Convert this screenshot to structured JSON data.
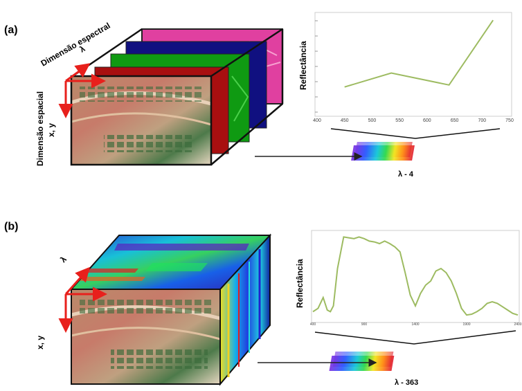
{
  "panel_a": {
    "label": "(a)",
    "spectral_axis_label": "Dimensão espectral",
    "lambda_symbol": "λ",
    "spatial_axis_label": "Dimensão espacial",
    "spatial_xy_label": "x, y",
    "chart_ylabel": "Reflectância",
    "band_caption": "λ - 4",
    "band_colors": [
      "#e040a0",
      "#101080",
      "#109a10",
      "#b01010"
    ]
  },
  "panel_b": {
    "label": "(b)",
    "lambda_symbol": "λ",
    "spatial_xy_label": "x, y",
    "chart_ylabel": "Reflectância",
    "band_caption": "λ - 363"
  },
  "chart_data": [
    {
      "type": "line",
      "ylabel": "Reflectância",
      "xlim": [
        400,
        750
      ],
      "xticks": [
        "400",
        "450",
        "500",
        "550",
        "600",
        "650",
        "700",
        "750"
      ],
      "x": [
        450,
        535,
        640,
        720
      ],
      "y": [
        0.28,
        0.42,
        0.3,
        0.95
      ],
      "ylim": [
        0,
        1
      ],
      "color": "#9dbb61"
    },
    {
      "type": "line",
      "ylabel": "Reflectância",
      "xlim": [
        400,
        2400
      ],
      "xticks": [
        "400",
        "900",
        "1400",
        "1900",
        "2400"
      ],
      "x": [
        400,
        450,
        500,
        540,
        570,
        600,
        640,
        700,
        750,
        800,
        850,
        900,
        950,
        1000,
        1050,
        1100,
        1150,
        1200,
        1250,
        1300,
        1350,
        1400,
        1450,
        1500,
        1550,
        1600,
        1650,
        1700,
        1750,
        1800,
        1850,
        1900,
        1950,
        2000,
        2050,
        2100,
        2150,
        2200,
        2250,
        2300,
        2350,
        2400
      ],
      "y": [
        0.08,
        0.12,
        0.25,
        0.1,
        0.08,
        0.15,
        0.6,
        0.98,
        0.97,
        0.96,
        0.98,
        0.96,
        0.93,
        0.92,
        0.9,
        0.93,
        0.9,
        0.86,
        0.8,
        0.55,
        0.28,
        0.15,
        0.3,
        0.4,
        0.45,
        0.57,
        0.6,
        0.55,
        0.45,
        0.3,
        0.12,
        0.04,
        0.05,
        0.08,
        0.12,
        0.18,
        0.2,
        0.18,
        0.14,
        0.1,
        0.06,
        0.04
      ],
      "ylim": [
        0,
        1
      ],
      "color": "#9dbb61"
    }
  ]
}
